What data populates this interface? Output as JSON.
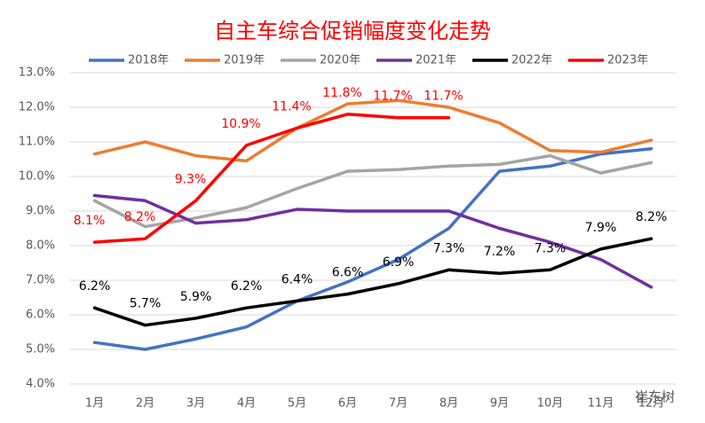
{
  "chart_data": {
    "type": "line",
    "title": "自主车综合促销幅度变化走势",
    "categories": [
      "1月",
      "2月",
      "3月",
      "4月",
      "5月",
      "6月",
      "7月",
      "8月",
      "9月",
      "10月",
      "11月",
      "12月"
    ],
    "series": [
      {
        "name": "2018年",
        "color": "#4472c4",
        "values": [
          5.2,
          5.0,
          5.3,
          5.65,
          6.4,
          6.95,
          7.6,
          8.5,
          10.15,
          10.3,
          10.65,
          10.8
        ]
      },
      {
        "name": "2019年",
        "color": "#ed7d31",
        "values": [
          10.65,
          11.0,
          10.6,
          10.45,
          11.4,
          12.1,
          12.2,
          12.0,
          11.55,
          10.75,
          10.7,
          11.05
        ]
      },
      {
        "name": "2020年",
        "color": "#a5a5a5",
        "values": [
          9.3,
          8.55,
          8.8,
          9.1,
          9.65,
          10.15,
          10.2,
          10.3,
          10.35,
          10.6,
          10.1,
          10.4
        ]
      },
      {
        "name": "2021年",
        "color": "#7030a0",
        "values": [
          9.45,
          9.3,
          8.65,
          8.75,
          9.05,
          9.0,
          9.0,
          9.0,
          8.5,
          8.1,
          7.6,
          6.8
        ]
      },
      {
        "name": "2022年",
        "color": "#000000",
        "values": [
          6.2,
          5.7,
          5.9,
          6.2,
          6.4,
          6.6,
          6.9,
          7.3,
          7.2,
          7.3,
          7.9,
          8.2
        ],
        "value_labels": [
          "6.2%",
          "5.7%",
          "5.9%",
          "6.2%",
          "6.4%",
          "6.6%",
          "6.9%",
          "7.3%",
          "7.2%",
          "7.3%",
          "7.9%",
          "8.2%"
        ],
        "label_color": "#000000"
      },
      {
        "name": "2023年",
        "color": "#ff0000",
        "values": [
          8.1,
          8.2,
          9.3,
          10.9,
          11.4,
          11.8,
          11.7,
          11.7,
          null,
          null,
          null,
          null
        ],
        "value_labels": [
          "8.1%",
          "8.2%",
          "9.3%",
          "10.9%",
          "11.4%",
          "11.8%",
          "11.7%",
          "11.7%",
          null,
          null,
          null,
          null
        ],
        "label_color": "#ff0000"
      }
    ],
    "ylim": [
      4,
      13
    ],
    "yticks": [
      {
        "value": 4,
        "label": "4.0%"
      },
      {
        "value": 5,
        "label": "5.0%"
      },
      {
        "value": 6,
        "label": "6.0%"
      },
      {
        "value": 7,
        "label": "7.0%"
      },
      {
        "value": 8,
        "label": "8.0%"
      },
      {
        "value": 9,
        "label": "9.0%"
      },
      {
        "value": 10,
        "label": "10.0%"
      },
      {
        "value": 11,
        "label": "11.0%"
      },
      {
        "value": 12,
        "label": "12.0%"
      },
      {
        "value": 13,
        "label": "13.0%"
      }
    ],
    "grid": true,
    "watermark": "崔东树"
  }
}
